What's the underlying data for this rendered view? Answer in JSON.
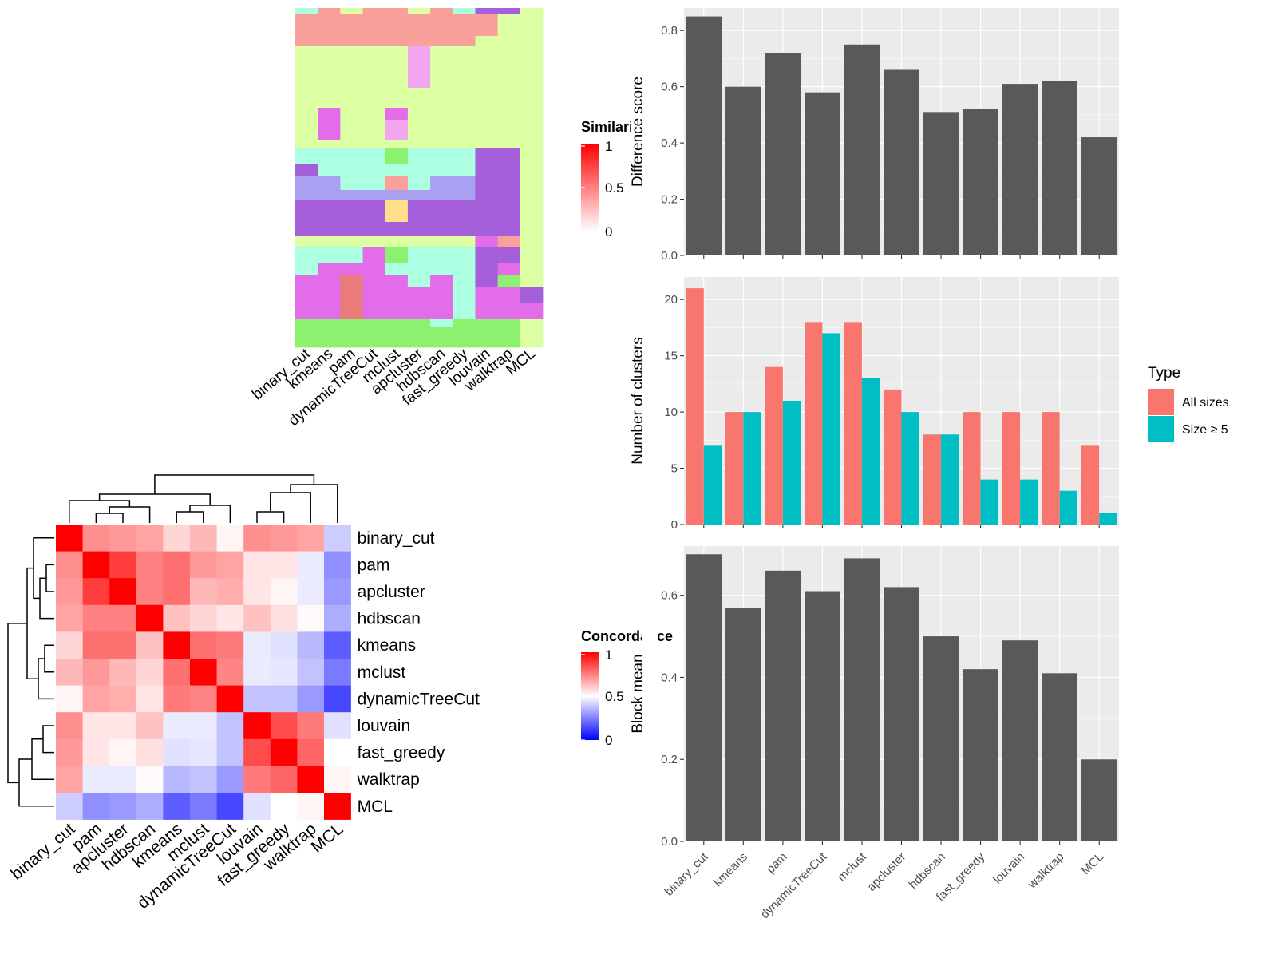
{
  "chart_data": [
    {
      "id": "similarity_heatmap",
      "type": "heatmap",
      "legend_title": "Similarity",
      "legend_ticks": [
        "1",
        "0.5",
        "0"
      ],
      "legend_range": [
        0,
        1
      ],
      "colors": {
        "low": "#FFFFFF",
        "high": "#FF0000"
      },
      "methods": [
        "binary_cut",
        "kmeans",
        "pam",
        "dynamicTreeCut",
        "mclust",
        "apcluster",
        "hdbscan",
        "fast_greedy",
        "louvain",
        "walktrap",
        "MCL"
      ]
    },
    {
      "id": "concordance_heatmap",
      "type": "heatmap",
      "legend_title": "Concordance",
      "legend_ticks": [
        "1",
        "0.5",
        "0"
      ],
      "legend_range": [
        0,
        1
      ],
      "colors": {
        "low": "#0000FF",
        "mid": "#FFFFFF",
        "high": "#FF0000"
      },
      "rows": [
        "binary_cut",
        "pam",
        "apcluster",
        "hdbscan",
        "kmeans",
        "mclust",
        "dynamicTreeCut",
        "louvain",
        "fast_greedy",
        "walktrap",
        "MCL"
      ],
      "columns": [
        "binary_cut",
        "pam",
        "apcluster",
        "hdbscan",
        "kmeans",
        "mclust",
        "dynamicTreeCut",
        "louvain",
        "fast_greedy",
        "walktrap",
        "MCL"
      ],
      "values": [
        [
          1.0,
          0.72,
          0.7,
          0.68,
          0.58,
          0.64,
          0.52,
          0.72,
          0.7,
          0.68,
          0.4
        ],
        [
          0.72,
          1.0,
          0.88,
          0.75,
          0.78,
          0.7,
          0.68,
          0.55,
          0.55,
          0.46,
          0.28
        ],
        [
          0.7,
          0.88,
          1.0,
          0.75,
          0.78,
          0.64,
          0.66,
          0.55,
          0.52,
          0.46,
          0.3
        ],
        [
          0.68,
          0.75,
          0.75,
          1.0,
          0.62,
          0.58,
          0.55,
          0.62,
          0.56,
          0.51,
          0.34
        ],
        [
          0.58,
          0.78,
          0.78,
          0.62,
          1.0,
          0.78,
          0.76,
          0.46,
          0.44,
          0.36,
          0.18
        ],
        [
          0.64,
          0.7,
          0.64,
          0.58,
          0.78,
          1.0,
          0.74,
          0.46,
          0.45,
          0.38,
          0.24
        ],
        [
          0.52,
          0.68,
          0.66,
          0.55,
          0.76,
          0.74,
          1.0,
          0.38,
          0.38,
          0.3,
          0.14
        ],
        [
          0.72,
          0.55,
          0.55,
          0.62,
          0.46,
          0.46,
          0.38,
          1.0,
          0.85,
          0.76,
          0.44
        ],
        [
          0.7,
          0.55,
          0.52,
          0.56,
          0.44,
          0.45,
          0.38,
          0.85,
          1.0,
          0.8,
          0.5
        ],
        [
          0.68,
          0.46,
          0.46,
          0.51,
          0.36,
          0.38,
          0.3,
          0.76,
          0.8,
          1.0,
          0.52
        ],
        [
          0.4,
          0.28,
          0.3,
          0.34,
          0.18,
          0.24,
          0.14,
          0.44,
          0.5,
          0.52,
          1.0
        ]
      ]
    },
    {
      "id": "difference_score",
      "type": "bar",
      "categories": [
        "binary_cut",
        "kmeans",
        "pam",
        "dynamicTreeCut",
        "mclust",
        "apcluster",
        "hdbscan",
        "fast_greedy",
        "louvain",
        "walktrap",
        "MCL"
      ],
      "values": [
        0.85,
        0.6,
        0.72,
        0.58,
        0.75,
        0.66,
        0.51,
        0.52,
        0.61,
        0.62,
        0.42
      ],
      "ylabel": "Difference score",
      "ylim": [
        0,
        0.88
      ],
      "yticks": [
        0.0,
        0.2,
        0.4,
        0.6,
        0.8
      ],
      "ytick_labels": [
        "0.0",
        "0.2",
        "0.4",
        "0.6",
        "0.8"
      ],
      "color": "#595959",
      "grid": true
    },
    {
      "id": "number_of_clusters",
      "type": "bar",
      "categories": [
        "binary_cut",
        "kmeans",
        "pam",
        "dynamicTreeCut",
        "mclust",
        "apcluster",
        "hdbscan",
        "fast_greedy",
        "louvain",
        "walktrap",
        "MCL"
      ],
      "series": [
        {
          "name": "All sizes",
          "color": "#F8766D",
          "values": [
            21,
            10,
            14,
            18,
            18,
            12,
            8,
            10,
            10,
            10,
            7
          ]
        },
        {
          "name": "Size ≥ 5",
          "color": "#00BFC4",
          "values": [
            7,
            10,
            11,
            17,
            13,
            10,
            8,
            4,
            4,
            3,
            1
          ]
        }
      ],
      "ylabel": "Number of clusters",
      "ylim": [
        0,
        22
      ],
      "yticks": [
        0,
        5,
        10,
        15,
        20
      ],
      "ytick_labels": [
        "0",
        "5",
        "10",
        "15",
        "20"
      ],
      "legend_title": "Type",
      "legend_position": "right",
      "grid": true
    },
    {
      "id": "block_mean",
      "type": "bar",
      "categories": [
        "binary_cut",
        "kmeans",
        "pam",
        "dynamicTreeCut",
        "mclust",
        "apcluster",
        "hdbscan",
        "fast_greedy",
        "louvain",
        "walktrap",
        "MCL"
      ],
      "values": [
        0.7,
        0.57,
        0.66,
        0.61,
        0.69,
        0.62,
        0.5,
        0.42,
        0.49,
        0.41,
        0.2
      ],
      "ylabel": "Block mean",
      "ylim": [
        0,
        0.72
      ],
      "yticks": [
        0.0,
        0.2,
        0.4,
        0.6
      ],
      "ytick_labels": [
        "0.0",
        "0.2",
        "0.4",
        "0.6"
      ],
      "color": "#595959",
      "grid": true
    }
  ]
}
